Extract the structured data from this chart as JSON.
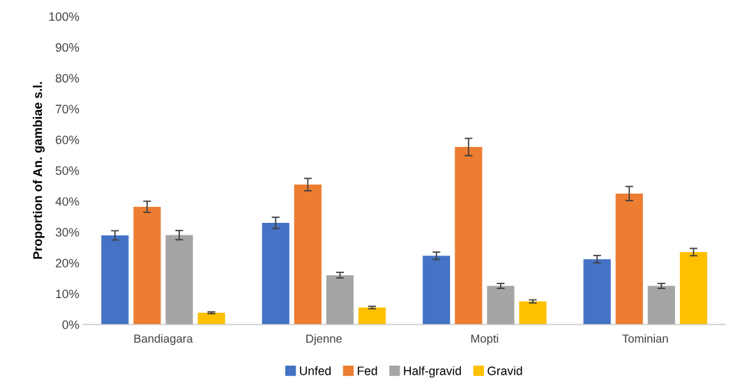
{
  "chart_data": {
    "type": "bar",
    "ylabel": "Proportion of An. gambiae s.l.",
    "categories": [
      "Bandiagara",
      "Djenne",
      "Mopti",
      "Tominian"
    ],
    "series": [
      {
        "name": "Unfed",
        "color": "#4472c4",
        "values": [
          28.9,
          33.0,
          22.3,
          21.2
        ],
        "errors": [
          1.5,
          1.8,
          1.2,
          1.2
        ]
      },
      {
        "name": "Fed",
        "color": "#ed7d31",
        "values": [
          38.2,
          45.4,
          57.6,
          42.5
        ],
        "errors": [
          1.8,
          2.0,
          2.8,
          2.3
        ]
      },
      {
        "name": "Half-gravid",
        "color": "#a5a5a5",
        "values": [
          29.0,
          16.0,
          12.5,
          12.5
        ],
        "errors": [
          1.5,
          0.9,
          0.8,
          0.8
        ]
      },
      {
        "name": "Gravid",
        "color": "#ffc000",
        "values": [
          3.8,
          5.5,
          7.5,
          23.5
        ],
        "errors": [
          0.3,
          0.4,
          0.5,
          1.2
        ]
      }
    ],
    "ylim": [
      0,
      100
    ],
    "yticks": [
      {
        "value": 0,
        "label": "0%"
      },
      {
        "value": 10,
        "label": "10%"
      },
      {
        "value": 20,
        "label": "20%"
      },
      {
        "value": 30,
        "label": "30%"
      },
      {
        "value": 40,
        "label": "40%"
      },
      {
        "value": 50,
        "label": "50%"
      },
      {
        "value": 60,
        "label": "60%"
      },
      {
        "value": 70,
        "label": "70%"
      },
      {
        "value": 80,
        "label": "80%"
      },
      {
        "value": 90,
        "label": "90%"
      },
      {
        "value": 100,
        "label": "100%"
      }
    ],
    "grid": false,
    "legend": "bottom"
  }
}
